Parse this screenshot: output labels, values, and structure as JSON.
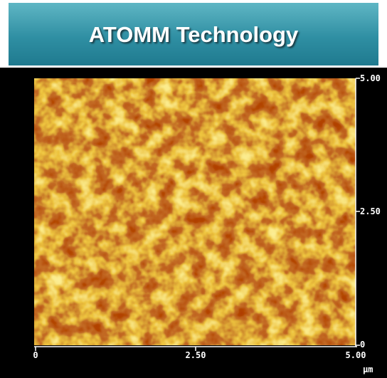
{
  "header": {
    "title": "ATOMM Technology"
  },
  "image": {
    "x_axis": {
      "ticks": [
        "0",
        "2.50",
        "5.00"
      ],
      "unit": "μm"
    },
    "y_axis": {
      "ticks": [
        "0",
        "2.50",
        "5.00"
      ]
    }
  }
}
